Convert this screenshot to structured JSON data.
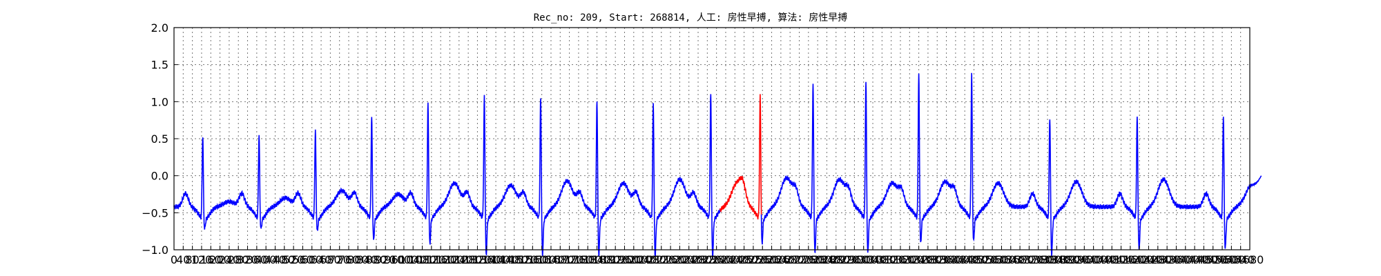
{
  "chart_data": {
    "type": "line",
    "title": "Rec_no: 209, Start: 268814, 人工: 房性早搏, 算法: 房性早搏",
    "xlabel": "",
    "ylabel": "",
    "xlim": [
      0,
      4680
    ],
    "ylim": [
      -1.0,
      2.0
    ],
    "grid": true,
    "x_ticks": [
      0,
      40,
      80,
      120,
      160,
      200,
      240,
      280,
      320,
      360,
      400,
      440,
      480,
      520,
      560,
      600,
      640,
      680,
      720,
      760,
      800,
      840,
      880,
      920,
      960,
      1000,
      1040,
      1080,
      1120,
      1160,
      1200,
      1240,
      1280,
      1320,
      1360,
      1400,
      1440,
      1480,
      1520,
      1560,
      1600,
      1640,
      1680,
      1720,
      1760,
      1800,
      1840,
      1880,
      1920,
      1960,
      2000,
      2040,
      2080,
      2120,
      2160,
      2200,
      2240,
      2280,
      2320,
      2360,
      2400,
      2440,
      2480,
      2520,
      2560,
      2600,
      2640,
      2680,
      2720,
      2760,
      2800,
      2840,
      2880,
      2920,
      2960,
      3000,
      3040,
      3080,
      3120,
      3160,
      3200,
      3240,
      3280,
      3320,
      3360,
      3400,
      3440,
      3480,
      3520,
      3560,
      3600,
      3640,
      3680,
      3720,
      3760,
      3800,
      3840,
      3880,
      3920,
      3960,
      4000,
      4040,
      4080,
      4120,
      4160,
      4200,
      4240,
      4280,
      4320,
      4360,
      4400,
      4440,
      4480,
      4520,
      4560,
      4600,
      4640,
      4680
    ],
    "y_ticks": [
      -1.0,
      -0.5,
      0.0,
      0.5,
      1.0,
      1.5,
      2.0
    ],
    "y_tick_labels": [
      "−1.0",
      "−0.5",
      "0.0",
      "0.5",
      "1.0",
      "1.5",
      "2.0"
    ],
    "beats": [
      {
        "r": 125,
        "amp": 0.72,
        "qdepth": -0.55,
        "tamp": -0.35
      },
      {
        "r": 370,
        "amp": 0.72,
        "qdepth": -0.55,
        "tamp": -0.3
      },
      {
        "r": 615,
        "amp": 0.78,
        "qdepth": -0.58,
        "tamp": -0.2
      },
      {
        "r": 860,
        "amp": 0.97,
        "qdepth": -0.7,
        "tamp": -0.25
      },
      {
        "r": 1105,
        "amp": 1.15,
        "qdepth": -0.75,
        "tamp": -0.1
      },
      {
        "r": 1350,
        "amp": 1.25,
        "qdepth": -0.9,
        "tamp": -0.13
      },
      {
        "r": 1595,
        "amp": 1.24,
        "qdepth": -0.9,
        "tamp": -0.07
      },
      {
        "r": 1840,
        "amp": 1.2,
        "qdepth": -0.9,
        "tamp": -0.1
      },
      {
        "r": 2085,
        "amp": 1.17,
        "qdepth": -0.92,
        "tamp": -0.05
      },
      {
        "r": 2335,
        "amp": 1.3,
        "qdepth": -0.93,
        "tamp": -0.1
      },
      {
        "r": 2550,
        "amp": 1.26,
        "qdepth": -0.75,
        "tamp": -0.03
      },
      {
        "r": 2780,
        "amp": 1.42,
        "qdepth": -0.88,
        "tamp": -0.05
      },
      {
        "r": 3010,
        "amp": 1.45,
        "qdepth": -0.88,
        "tamp": -0.1
      },
      {
        "r": 3240,
        "amp": 1.55,
        "qdepth": -0.75,
        "tamp": -0.08
      },
      {
        "r": 3470,
        "amp": 1.55,
        "qdepth": -0.72,
        "tamp": -0.1
      },
      {
        "r": 3810,
        "amp": 0.98,
        "qdepth": -0.9,
        "tamp": -0.08
      },
      {
        "r": 4190,
        "amp": 0.98,
        "qdepth": -0.83,
        "tamp": -0.05
      },
      {
        "r": 4565,
        "amp": 0.99,
        "qdepth": -0.82,
        "tamp": -0.2
      }
    ],
    "highlight_range": [
      2375,
      2555
    ],
    "signal_end": 4730,
    "end_value": 0.0,
    "series": [
      {
        "color": "#0000ff"
      },
      {
        "color": "#ff0000"
      }
    ]
  }
}
